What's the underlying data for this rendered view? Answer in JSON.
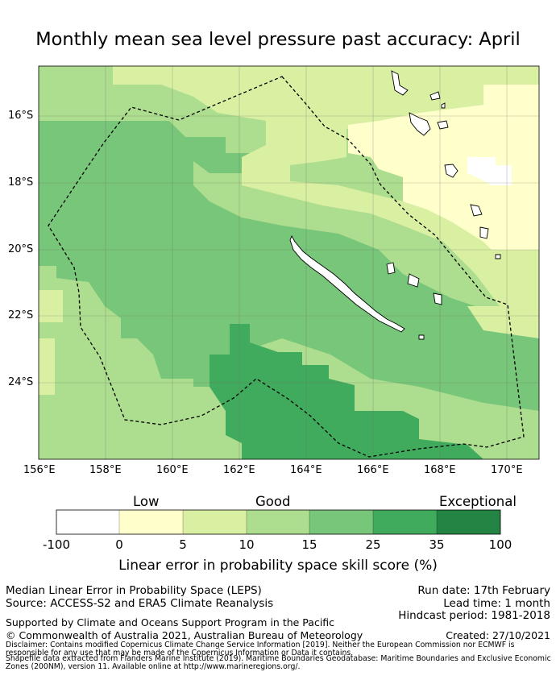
{
  "title": "Monthly mean sea level pressure past accuracy: April",
  "map": {
    "lat_labels": [
      "16°S",
      "18°S",
      "20°S",
      "22°S",
      "24°S"
    ],
    "lon_labels": [
      "156°E",
      "158°E",
      "160°E",
      "162°E",
      "164°E",
      "166°E",
      "168°E",
      "170°E"
    ],
    "colors": {
      "c0": "#ffffff",
      "c1": "#ffffcc",
      "c2": "#d9f0a3",
      "c3": "#addd8e",
      "c4": "#78c679",
      "c5": "#41ab5d",
      "c6": "#238443"
    }
  },
  "colorbar": {
    "categories": [
      "Low",
      "Good",
      "Exceptional"
    ],
    "ticks": [
      "-100",
      "0",
      "5",
      "10",
      "15",
      "25",
      "35",
      "100"
    ],
    "label": "Linear error in probability space skill score (%)"
  },
  "footer": {
    "method": "Median Linear Error in Probability Space (LEPS)",
    "source": "Source: ACCESS-S2 and ERA5 Climate Reanalysis",
    "run_date": "Run date: 17th February",
    "lead_time": "Lead time: 1 month",
    "hindcast": "Hindcast period: 1981-2018",
    "support": "Supported by Climate and Oceans Support Program in the Pacific",
    "copyright": "© Commonwealth of Australia 2021, Australian Bureau of Meteorology",
    "created": "Created: 27/10/2021",
    "disclaimer_1": "Disclaimer: Contains modified Copernicus Climate Change Service Information [2019]. Neither the European Commission nor ECMWF is",
    "disclaimer_2": "responsible for any use that may be made of the Copernicus Information or Data it contains.",
    "disclaimer_3": "Shapefile data extracted from Flanders Marine Institute (2019). Maritime Boundaries Geodatabase: Maritime Boundaries and Exclusive Economic",
    "disclaimer_4": "Zones (200NM), version 11. Available online at http://www.marineregions.org/."
  }
}
